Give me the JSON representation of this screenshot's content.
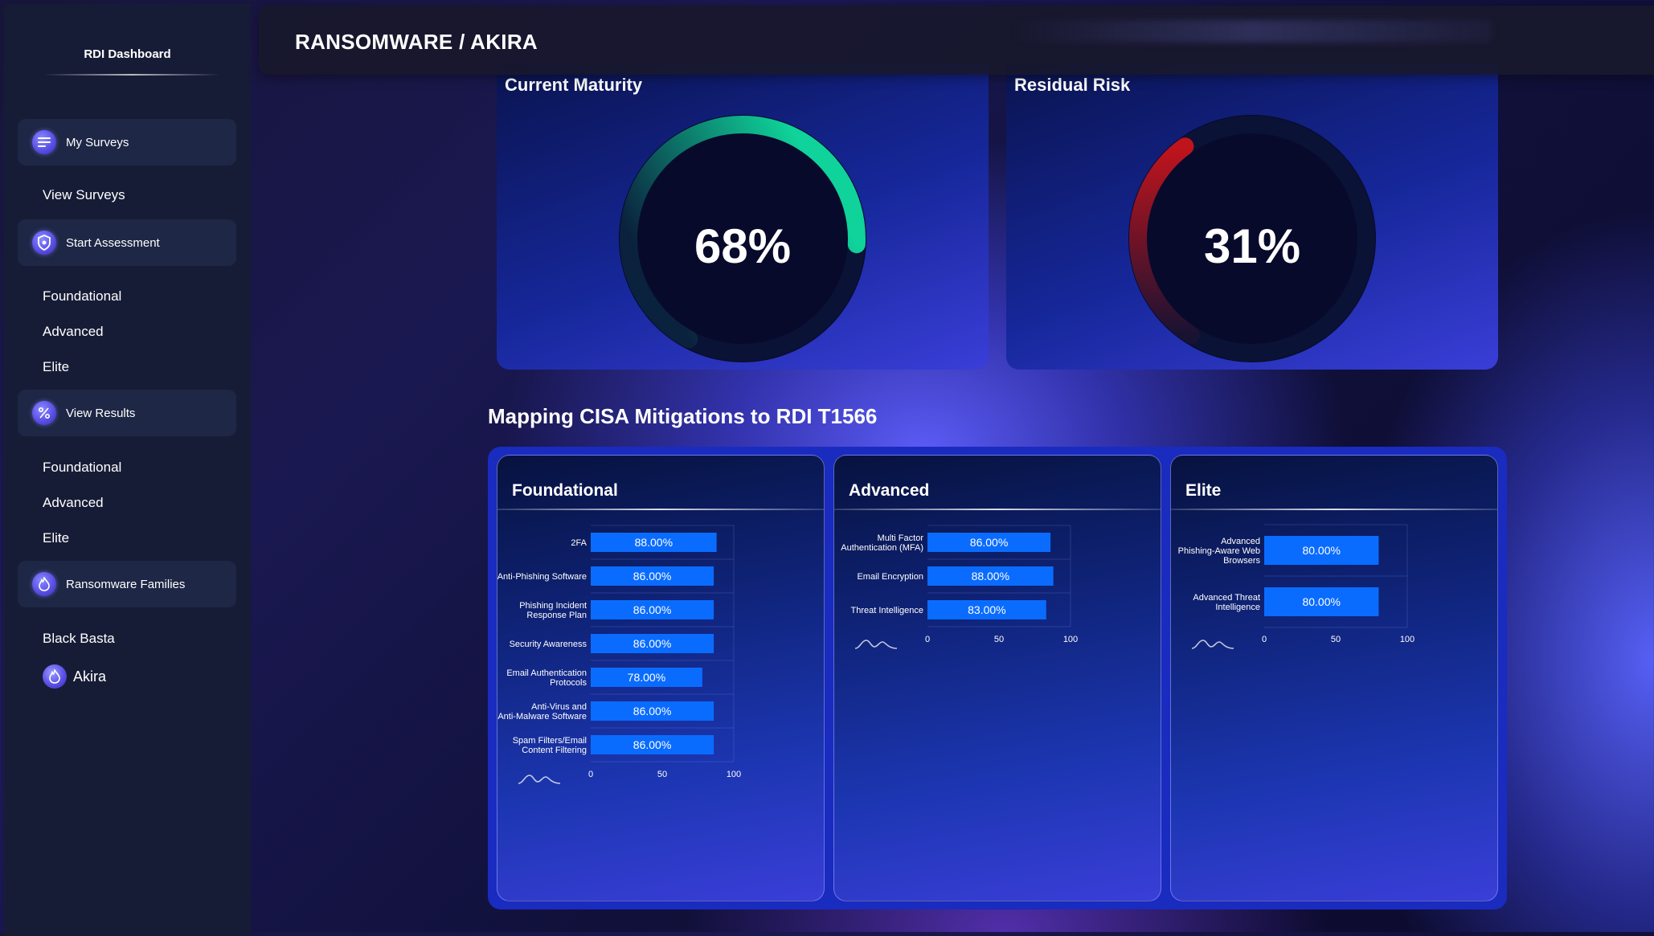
{
  "sidebar": {
    "title": "RDI Dashboard",
    "sections": [
      {
        "label": "My Surveys",
        "icon": "list-icon",
        "children": [
          "View Surveys"
        ]
      },
      {
        "label": "Start Assessment",
        "icon": "shield-icon",
        "children": [
          "Foundational",
          "Advanced",
          "Elite"
        ]
      },
      {
        "label": "View Results",
        "icon": "percent-icon",
        "children": [
          "Foundational",
          "Advanced",
          "Elite"
        ]
      },
      {
        "label": "Ransomware Families",
        "icon": "flame-icon",
        "children": [
          "Black Basta",
          "Akira"
        ]
      }
    ]
  },
  "header": {
    "breadcrumb": "RANSOMWARE / AKIRA"
  },
  "gauges": [
    {
      "title": "Current Maturity",
      "value_label": "68%",
      "value": 0.68,
      "color": "#0fd39a"
    },
    {
      "title": "Residual Risk",
      "value_label": "31%",
      "value": 0.31,
      "color": "#c0141c"
    }
  ],
  "mitigations": {
    "title": "Mapping CISA Mitigations to RDI T1566",
    "panels": [
      {
        "title": "Foundational",
        "chart_data": {
          "type": "bar",
          "orientation": "horizontal",
          "categories": [
            "2FA",
            "Anti-Phishing Software",
            "Phishing Incident Response Plan",
            "Security Awareness",
            "Email Authentication Protocols",
            "Anti-Virus and Anti-Malware Software",
            "Spam Filters/Email Content Filtering"
          ],
          "category_lines": [
            [
              "2FA"
            ],
            [
              "Anti-Phishing Software"
            ],
            [
              "Phishing Incident",
              "Response Plan"
            ],
            [
              "Security Awareness"
            ],
            [
              "Email Authentication",
              "Protocols"
            ],
            [
              "Anti-Virus and",
              "Anti-Malware Software"
            ],
            [
              "Spam Filters/Email",
              "Content Filtering"
            ]
          ],
          "values": [
            88,
            86,
            86,
            86,
            78,
            86,
            86
          ],
          "value_labels": [
            "88.00%",
            "86.00%",
            "86.00%",
            "86.00%",
            "78.00%",
            "86.00%",
            "86.00%"
          ],
          "xlim": [
            0,
            100
          ],
          "xticks": [
            "0",
            "50",
            "100"
          ],
          "bar_color": "#0a6cff"
        }
      },
      {
        "title": "Advanced",
        "chart_data": {
          "type": "bar",
          "orientation": "horizontal",
          "categories": [
            "Multi Factor Authentication (MFA)",
            "Email Encryption",
            "Threat Intelligence"
          ],
          "category_lines": [
            [
              "Multi Factor",
              "Authentication (MFA)"
            ],
            [
              "Email Encryption"
            ],
            [
              "Threat Intelligence"
            ]
          ],
          "values": [
            86,
            88,
            83
          ],
          "value_labels": [
            "86.00%",
            "88.00%",
            "83.00%"
          ],
          "xlim": [
            0,
            100
          ],
          "xticks": [
            "0",
            "50",
            "100"
          ],
          "bar_color": "#0a6cff"
        }
      },
      {
        "title": "Elite",
        "chart_data": {
          "type": "bar",
          "orientation": "horizontal",
          "categories": [
            "Advanced Phishing-Aware Web Browsers",
            "Advanced Threat Intelligence"
          ],
          "category_lines": [
            [
              "Advanced",
              "Phishing-Aware Web",
              "Browsers"
            ],
            [
              "Advanced Threat",
              "Intelligence"
            ]
          ],
          "values": [
            80,
            80
          ],
          "value_labels": [
            "80.00%",
            "80.00%"
          ],
          "xlim": [
            0,
            100
          ],
          "xticks": [
            "0",
            "50",
            "100"
          ],
          "bar_color": "#0a6cff"
        }
      }
    ]
  }
}
